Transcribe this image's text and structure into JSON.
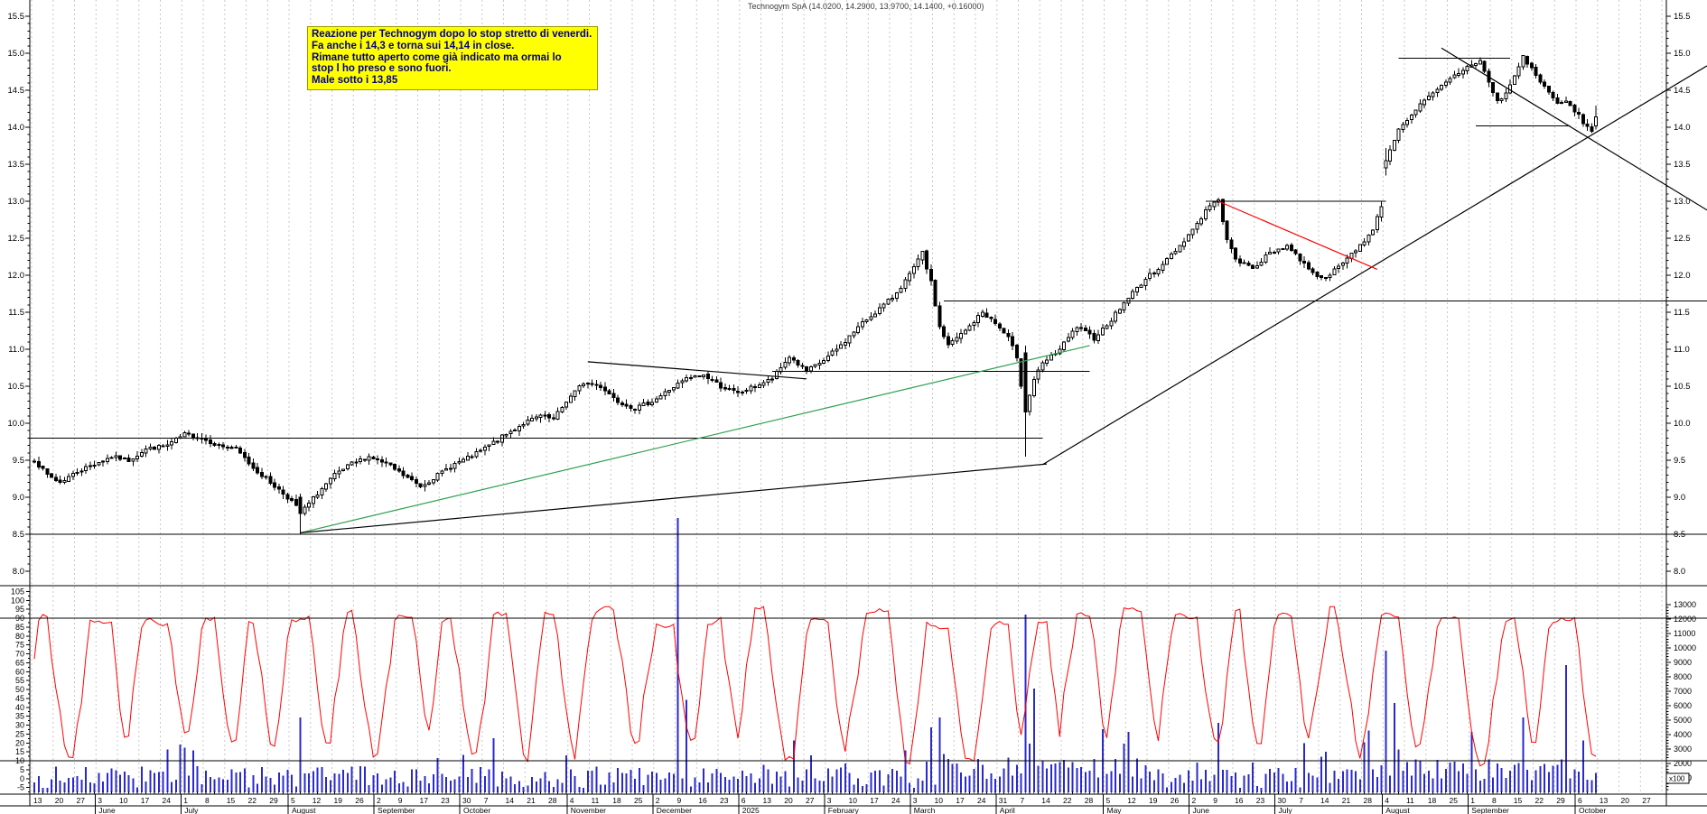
{
  "title": "Technogym SpA (14.0200, 14.2900, 13.9700, 14.1400, +0.16000)",
  "note": {
    "bg_color": "#ffff00",
    "text_color": "#00008b",
    "lines": [
      "Reazione per Technogym dopo lo stop stretto di venerdi.",
      "Fa anche i 14,3 e torna sui 14,14 in close.",
      "Rimane tutto aperto come già indicato ma ormai lo",
      "stop l ho preso e sono fuori.",
      "Male sotto i 13,85"
    ]
  },
  "chart_data": {
    "type": "candlestick",
    "instrument": "Technogym SpA",
    "last_quote": {
      "open": 14.02,
      "high": 14.29,
      "low": 13.97,
      "close": 14.14,
      "change": "+0.16000"
    },
    "price_axis": {
      "min": 8.0,
      "max": 15.5,
      "step": 0.5,
      "labels": [
        "15.5",
        "15.0",
        "14.5",
        "14.0",
        "13.5",
        "13.0",
        "12.5",
        "12.0",
        "11.5",
        "11.0",
        "10.5",
        "10.0",
        "9.5",
        "9.0",
        "8.5",
        "8.0"
      ]
    },
    "oscillator_axis": {
      "labels": [
        "105",
        "100",
        "95",
        "90",
        "85",
        "80",
        "75",
        "70",
        "65",
        "60",
        "55",
        "50",
        "45",
        "40",
        "35",
        "30",
        "25",
        "20",
        "15",
        "10",
        "5",
        "0",
        "-5"
      ],
      "overbought": 90,
      "oversold": 10,
      "color": "#ff0000"
    },
    "volume_axis": {
      "labels": [
        "13000",
        "12000",
        "11000",
        "10000",
        "9000",
        "8000",
        "7000",
        "6000",
        "5000",
        "4000",
        "3000",
        "2000",
        "1000"
      ],
      "multiplier": "x100",
      "color": "#2929cc"
    },
    "date_labels": [
      "13",
      "20",
      "27",
      "3",
      "10",
      "17",
      "24",
      "1",
      "8",
      "15",
      "22",
      "29",
      "5",
      "12",
      "19",
      "26",
      "2",
      "9",
      "17",
      "23",
      "30",
      "7",
      "14",
      "21",
      "28",
      "4",
      "11",
      "18",
      "25",
      "2",
      "9",
      "16",
      "23",
      "6",
      "13",
      "20",
      "27",
      "3",
      "10",
      "17",
      "24",
      "3",
      "10",
      "17",
      "24",
      "31",
      "7",
      "14",
      "22",
      "28",
      "5",
      "12",
      "19",
      "26",
      "2",
      "9",
      "16",
      "23",
      "30",
      "7",
      "14",
      "21",
      "28",
      "4",
      "11",
      "18",
      "25",
      "1",
      "8",
      "15",
      "22",
      "29",
      "6",
      "13",
      "20",
      "27"
    ],
    "months": [
      [
        "June",
        3
      ],
      [
        "July",
        7
      ],
      [
        "August",
        12
      ],
      [
        "September",
        16
      ],
      [
        "October",
        20
      ],
      [
        "November",
        25
      ],
      [
        "December",
        29
      ],
      [
        "2025",
        33
      ],
      [
        "February",
        37
      ],
      [
        "March",
        41
      ],
      [
        "April",
        45
      ],
      [
        "May",
        50
      ],
      [
        "June",
        54
      ],
      [
        "July",
        58
      ],
      [
        "August",
        63
      ],
      [
        "September",
        67
      ],
      [
        "October",
        72
      ]
    ],
    "close_anchors": [
      [
        0,
        9.5
      ],
      [
        3,
        9.3
      ],
      [
        6,
        9.2
      ],
      [
        10,
        9.35
      ],
      [
        14,
        9.45
      ],
      [
        18,
        9.55
      ],
      [
        22,
        9.5
      ],
      [
        26,
        9.65
      ],
      [
        31,
        9.7
      ],
      [
        35,
        9.85
      ],
      [
        39,
        9.8
      ],
      [
        43,
        9.7
      ],
      [
        47,
        9.65
      ],
      [
        51,
        9.4
      ],
      [
        55,
        9.2
      ],
      [
        58,
        9.05
      ],
      [
        60,
        8.95
      ],
      [
        62,
        8.78
      ],
      [
        66,
        9.05
      ],
      [
        70,
        9.3
      ],
      [
        74,
        9.45
      ],
      [
        78,
        9.55
      ],
      [
        82,
        9.45
      ],
      [
        86,
        9.3
      ],
      [
        90,
        9.15
      ],
      [
        94,
        9.3
      ],
      [
        98,
        9.45
      ],
      [
        102,
        9.55
      ],
      [
        106,
        9.7
      ],
      [
        110,
        9.85
      ],
      [
        114,
        10.0
      ],
      [
        118,
        10.1
      ],
      [
        121,
        10.05
      ],
      [
        124,
        10.3
      ],
      [
        128,
        10.55
      ],
      [
        132,
        10.5
      ],
      [
        136,
        10.3
      ],
      [
        140,
        10.2
      ],
      [
        144,
        10.3
      ],
      [
        148,
        10.45
      ],
      [
        152,
        10.6
      ],
      [
        156,
        10.65
      ],
      [
        160,
        10.5
      ],
      [
        164,
        10.4
      ],
      [
        168,
        10.5
      ],
      [
        172,
        10.6
      ],
      [
        176,
        10.9
      ],
      [
        180,
        10.7
      ],
      [
        184,
        10.85
      ],
      [
        188,
        11.05
      ],
      [
        192,
        11.3
      ],
      [
        196,
        11.5
      ],
      [
        200,
        11.7
      ],
      [
        204,
        12.0
      ],
      [
        207,
        12.3
      ],
      [
        209,
        11.9
      ],
      [
        211,
        11.3
      ],
      [
        213,
        11.05
      ],
      [
        217,
        11.25
      ],
      [
        221,
        11.5
      ],
      [
        224,
        11.35
      ],
      [
        227,
        11.15
      ],
      [
        229,
        10.9
      ],
      [
        231,
        10.15
      ],
      [
        233,
        10.6
      ],
      [
        235,
        10.8
      ],
      [
        239,
        11.0
      ],
      [
        243,
        11.3
      ],
      [
        247,
        11.15
      ],
      [
        251,
        11.4
      ],
      [
        255,
        11.7
      ],
      [
        259,
        11.95
      ],
      [
        263,
        12.15
      ],
      [
        267,
        12.4
      ],
      [
        271,
        12.7
      ],
      [
        274,
        12.95
      ],
      [
        276,
        13.0
      ],
      [
        278,
        12.5
      ],
      [
        280,
        12.2
      ],
      [
        284,
        12.1
      ],
      [
        288,
        12.3
      ],
      [
        292,
        12.4
      ],
      [
        296,
        12.15
      ],
      [
        300,
        11.95
      ],
      [
        304,
        12.1
      ],
      [
        308,
        12.35
      ],
      [
        312,
        12.6
      ],
      [
        314,
        12.95
      ],
      [
        315,
        13.55
      ],
      [
        317,
        13.85
      ],
      [
        319,
        14.05
      ],
      [
        323,
        14.3
      ],
      [
        327,
        14.5
      ],
      [
        331,
        14.7
      ],
      [
        335,
        14.85
      ],
      [
        337,
        14.9
      ],
      [
        339,
        14.6
      ],
      [
        341,
        14.35
      ],
      [
        343,
        14.45
      ],
      [
        345,
        14.7
      ],
      [
        347,
        14.95
      ],
      [
        349,
        14.8
      ],
      [
        351,
        14.6
      ],
      [
        353,
        14.5
      ],
      [
        355,
        14.3
      ],
      [
        357,
        14.35
      ],
      [
        360,
        14.15
      ],
      [
        362,
        14.0
      ],
      [
        363,
        13.95
      ],
      [
        364,
        14.14
      ]
    ],
    "special_candles": [
      {
        "d": 62,
        "o": 9.0,
        "h": 9.05,
        "l": 8.5,
        "c": 8.78
      },
      {
        "d": 231,
        "o": 10.95,
        "h": 11.05,
        "l": 9.55,
        "c": 10.15
      },
      {
        "d": 315,
        "o": 13.45,
        "h": 13.72,
        "l": 13.35,
        "c": 13.55
      },
      {
        "d": 364,
        "o": 14.02,
        "h": 14.29,
        "l": 13.97,
        "c": 14.14
      }
    ],
    "hlines": [
      {
        "name": "level-9.8",
        "p": 9.8,
        "d1": -1,
        "d2": 235
      },
      {
        "name": "level-8.5",
        "p": 8.5,
        "d1": -1,
        "d2": 390
      },
      {
        "name": "level-10.7",
        "p": 10.7,
        "d1": 172,
        "d2": 246
      },
      {
        "name": "level-11.65",
        "p": 11.65,
        "d1": 212,
        "d2": 390
      },
      {
        "name": "level-13.0",
        "p": 13.0,
        "d1": 273,
        "d2": 315
      },
      {
        "name": "level-14.93",
        "p": 14.93,
        "d1": 318,
        "d2": 344
      },
      {
        "name": "level-14.02",
        "p": 14.02,
        "d1": 336,
        "d2": 358
      }
    ],
    "trendlines": [
      {
        "name": "green-support",
        "d1": 62,
        "p1": 8.52,
        "d2": 246,
        "p2": 11.05,
        "color": "#2fa050"
      },
      {
        "name": "shallow-base",
        "d1": 62,
        "p1": 8.52,
        "d2": 236,
        "p2": 9.45,
        "color": "#000000"
      },
      {
        "name": "long-ascending",
        "d1": 235,
        "p1": 9.44,
        "d2": 390,
        "p2": 14.83,
        "color": "#000000"
      },
      {
        "name": "descending-top",
        "d1": 328,
        "p1": 15.07,
        "d2": 390,
        "p2": 12.88,
        "color": "#000000"
      },
      {
        "name": "red-resistance",
        "d1": 276,
        "p1": 13.0,
        "d2": 313,
        "p2": 12.08,
        "color": "#ff0000"
      },
      {
        "name": "dec-jan-highs",
        "d1": 129,
        "p1": 10.83,
        "d2": 180,
        "p2": 10.6,
        "color": "#000000"
      }
    ],
    "volume_spikes": [
      [
        62,
        5200
      ],
      [
        100,
        2600
      ],
      [
        150,
        19000
      ],
      [
        152,
        6400
      ],
      [
        177,
        3600
      ],
      [
        209,
        4500
      ],
      [
        211,
        5200
      ],
      [
        231,
        12300
      ],
      [
        233,
        7200
      ],
      [
        255,
        4200
      ],
      [
        276,
        4800
      ],
      [
        296,
        3400
      ],
      [
        315,
        9800
      ],
      [
        317,
        6200
      ],
      [
        335,
        4200
      ],
      [
        347,
        5200
      ],
      [
        357,
        8800
      ],
      [
        361,
        3600
      ]
    ],
    "grid_color": "#c9c9c9",
    "up_candle_fill": "#ffffff",
    "down_candle_fill": "#000000"
  }
}
